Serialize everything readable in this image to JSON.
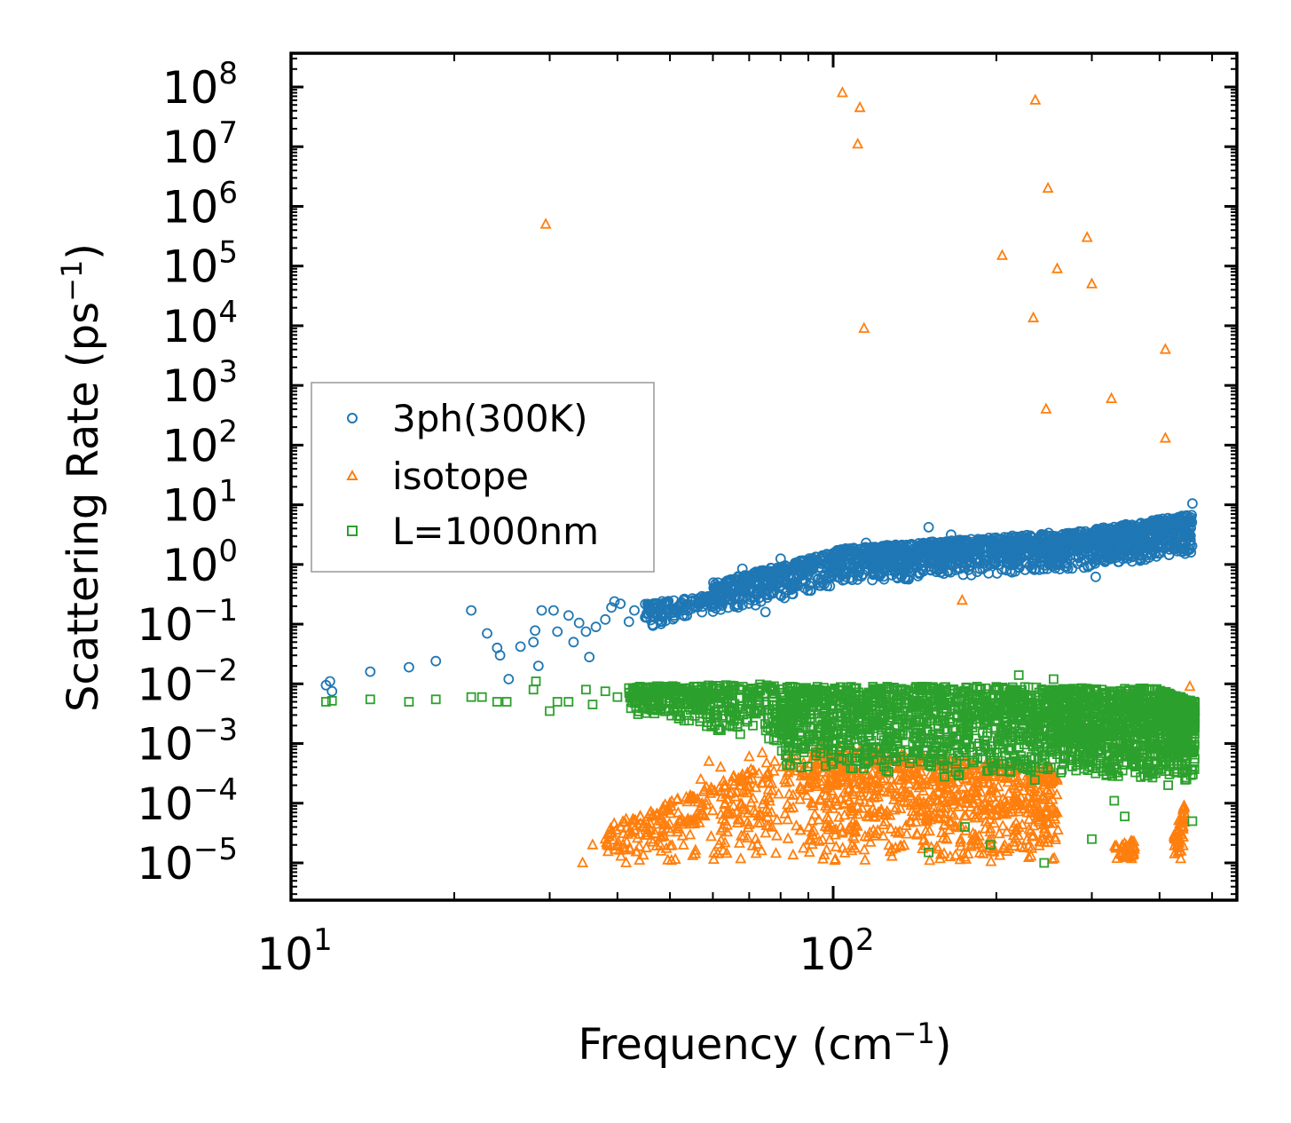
{
  "chart_data": {
    "type": "scatter",
    "xscale": "log",
    "yscale": "log",
    "xlim": [
      10,
      500
    ],
    "ylim": [
      2.5e-06,
      320000000.0
    ],
    "xlabel": "Frequency (cm",
    "xlabel_sup": "−1",
    "xlabel_tail": ")",
    "ylabel": "Scattering Rate (ps",
    "ylabel_sup": "−1",
    "ylabel_tail": ")",
    "x_ticks": [
      {
        "value": 10,
        "base": "10",
        "exp": "1"
      },
      {
        "value": 100,
        "base": "10",
        "exp": "2"
      }
    ],
    "y_ticks": [
      {
        "value": 1e-05,
        "base": "10",
        "exp": "−5"
      },
      {
        "value": 0.0001,
        "base": "10",
        "exp": "−4"
      },
      {
        "value": 0.001,
        "base": "10",
        "exp": "−3"
      },
      {
        "value": 0.01,
        "base": "10",
        "exp": "−2"
      },
      {
        "value": 0.1,
        "base": "10",
        "exp": "−1"
      },
      {
        "value": 1,
        "base": "10",
        "exp": "0"
      },
      {
        "value": 10,
        "base": "10",
        "exp": "1"
      },
      {
        "value": 100,
        "base": "10",
        "exp": "2"
      },
      {
        "value": 1000,
        "base": "10",
        "exp": "3"
      },
      {
        "value": 10000,
        "base": "10",
        "exp": "4"
      },
      {
        "value": 100000,
        "base": "10",
        "exp": "5"
      },
      {
        "value": 1000000,
        "base": "10",
        "exp": "6"
      },
      {
        "value": 10000000,
        "base": "10",
        "exp": "7"
      },
      {
        "value": 100000000,
        "base": "10",
        "exp": "8"
      }
    ],
    "legend_position": "center-left",
    "series": [
      {
        "name": "3ph(300K)",
        "marker": "circle",
        "color": "#1f77b4",
        "points": [
          [
            11.6,
            0.0095
          ],
          [
            11.8,
            0.011
          ],
          [
            11.9,
            0.0075
          ],
          [
            14,
            0.016
          ],
          [
            16.5,
            0.019
          ],
          [
            18.5,
            0.024
          ],
          [
            21.5,
            0.17
          ],
          [
            23,
            0.07
          ],
          [
            24,
            0.04
          ],
          [
            24.3,
            0.03
          ],
          [
            25.2,
            0.012
          ],
          [
            26.5,
            0.042
          ],
          [
            28,
            0.05
          ],
          [
            28.2,
            0.078
          ],
          [
            28.6,
            0.02
          ],
          [
            29,
            0.17
          ],
          [
            30.5,
            0.17
          ],
          [
            31,
            0.075
          ],
          [
            32.5,
            0.14
          ],
          [
            33.2,
            0.05
          ],
          [
            34,
            0.105
          ],
          [
            35,
            0.075
          ],
          [
            35.5,
            0.028
          ],
          [
            36.5,
            0.09
          ],
          [
            38,
            0.12
          ],
          [
            39,
            0.19
          ],
          [
            39.5,
            0.24
          ],
          [
            40.5,
            0.22
          ],
          [
            42,
            0.11
          ],
          [
            43,
            0.17
          ],
          [
            45,
            0.13
          ],
          [
            46,
            0.16
          ],
          [
            48,
            0.11
          ],
          [
            50,
            0.18
          ],
          [
            53,
            0.25
          ],
          [
            55,
            0.27
          ],
          [
            57,
            0.23
          ],
          [
            60,
            0.31
          ],
          [
            62,
            0.41
          ],
          [
            65,
            0.56
          ],
          [
            68,
            0.85
          ],
          [
            70,
            0.5
          ],
          [
            72,
            0.75
          ],
          [
            75,
            0.16
          ],
          [
            80,
            1.25
          ],
          [
            85,
            0.95
          ],
          [
            90,
            0.68
          ],
          [
            95,
            0.56
          ],
          [
            100,
            1.55
          ],
          [
            110,
            1.55
          ],
          [
            115,
            2.3
          ],
          [
            120,
            1.05
          ],
          [
            130,
            0.95
          ],
          [
            140,
            2.1
          ],
          [
            150,
            4.2
          ],
          [
            155,
            0.75
          ],
          [
            160,
            2.15
          ],
          [
            165,
            3.15
          ],
          [
            175,
            1.65
          ],
          [
            185,
            2.5
          ],
          [
            195,
            2.2
          ],
          [
            205,
            1.9
          ],
          [
            220,
            1.6
          ],
          [
            235,
            1.45
          ],
          [
            250,
            2.6
          ],
          [
            265,
            1.9
          ],
          [
            280,
            1.4
          ],
          [
            295,
            0.95
          ],
          [
            305,
            0.62
          ],
          [
            320,
            1.6
          ],
          [
            340,
            1.4
          ],
          [
            360,
            2.2
          ],
          [
            380,
            2.8
          ],
          [
            400,
            3.4
          ],
          [
            420,
            4.8
          ],
          [
            440,
            6.5
          ],
          [
            460,
            10.5
          ]
        ],
        "bands": [
          {
            "x": [
              45,
              60
            ],
            "lo": [
              0.08,
              0.18
            ],
            "hi": [
              0.22,
              0.32
            ],
            "count": 110
          },
          {
            "x": [
              60,
              100
            ],
            "lo": [
              0.14,
              0.4
            ],
            "hi": [
              0.5,
              1.6
            ],
            "count": 360
          },
          {
            "x": [
              100,
              250
            ],
            "lo": [
              0.45,
              0.8
            ],
            "hi": [
              1.8,
              3.4
            ],
            "count": 900
          },
          {
            "x": [
              250,
              460
            ],
            "lo": [
              0.75,
              1.3
            ],
            "hi": [
              3.0,
              7.0
            ],
            "count": 700
          }
        ]
      },
      {
        "name": "isotope",
        "marker": "triangle",
        "color": "#ff7f0e",
        "points": [
          [
            29.5,
            500000
          ],
          [
            104,
            80000000
          ],
          [
            112,
            45000000
          ],
          [
            111,
            11000000
          ],
          [
            114,
            9000
          ],
          [
            236,
            60000000
          ],
          [
            249,
            2000000
          ],
          [
            205,
            150000
          ],
          [
            259,
            90000
          ],
          [
            294,
            300000
          ],
          [
            300,
            50000
          ],
          [
            234,
            13500
          ],
          [
            247,
            400
          ],
          [
            326,
            600
          ],
          [
            410,
            4000
          ],
          [
            410,
            130
          ],
          [
            173,
            0.25
          ],
          [
            455,
            0.009
          ],
          [
            34.5,
            1e-05
          ],
          [
            36,
            2e-05
          ],
          [
            38,
            2.5e-05
          ],
          [
            40,
            2e-05
          ],
          [
            41.5,
            1e-05
          ],
          [
            44,
            3e-05
          ],
          [
            46,
            4.5e-05
          ],
          [
            48,
            6e-05
          ],
          [
            50,
            0.0001
          ],
          [
            52,
            5e-05
          ],
          [
            55,
            0.00012
          ],
          [
            57,
            0.00025
          ],
          [
            59,
            0.0005
          ],
          [
            62,
            0.0004
          ],
          [
            65,
            0.00015
          ],
          [
            68,
            0.0003
          ],
          [
            70,
            0.0006
          ],
          [
            74,
            0.0007
          ],
          [
            78,
            0.0005
          ]
        ],
        "bands": [
          {
            "x": [
              38,
              90
            ],
            "lo": [
              1e-05,
              1e-05
            ],
            "hi": [
              4e-05,
              0.0009
            ],
            "count": 320
          },
          {
            "x": [
              90,
              260
            ],
            "lo": [
              1e-05,
              1e-05
            ],
            "hi": [
              0.001,
              0.0004
            ],
            "count": 900
          },
          {
            "x": [
              330,
              360
            ],
            "lo": [
              1e-05,
              1e-05
            ],
            "hi": [
              2e-05,
              2.5e-05
            ],
            "count": 40
          },
          {
            "x": [
              425,
              445
            ],
            "lo": [
              1e-05,
              1e-05
            ],
            "hi": [
              3e-05,
              0.0001
            ],
            "count": 50
          }
        ]
      },
      {
        "name": "L=1000nm",
        "marker": "square",
        "color": "#2ca02c",
        "points": [
          [
            11.6,
            0.005
          ],
          [
            11.9,
            0.0052
          ],
          [
            14,
            0.0055
          ],
          [
            16.5,
            0.005
          ],
          [
            18.5,
            0.0055
          ],
          [
            21.5,
            0.006
          ],
          [
            22.5,
            0.006
          ],
          [
            24,
            0.005
          ],
          [
            25,
            0.005
          ],
          [
            28,
            0.008
          ],
          [
            28.3,
            0.011
          ],
          [
            30,
            0.0035
          ],
          [
            31,
            0.005
          ],
          [
            32.5,
            0.005
          ],
          [
            35,
            0.008
          ],
          [
            36,
            0.0045
          ],
          [
            38,
            0.0075
          ],
          [
            40,
            0.006
          ],
          [
            42,
            0.0085
          ],
          [
            44,
            0.009
          ],
          [
            220,
            0.014
          ],
          [
            255,
            0.012
          ],
          [
            330,
            0.00011
          ],
          [
            345,
            6e-05
          ],
          [
            380,
            0.0004
          ],
          [
            415,
            0.0002
          ],
          [
            460,
            5e-05
          ],
          [
            195,
            2e-05
          ],
          [
            245,
            1e-05
          ],
          [
            175,
            4e-05
          ],
          [
            150,
            1.5e-05
          ],
          [
            300,
            2.5e-05
          ]
        ],
        "bands": [
          {
            "x": [
              42,
              80
            ],
            "lo": [
              0.003,
              0.001
            ],
            "hi": [
              0.009,
              0.01
            ],
            "count": 380
          },
          {
            "x": [
              80,
              250
            ],
            "lo": [
              0.0004,
              0.0002
            ],
            "hi": [
              0.009,
              0.009
            ],
            "count": 1200
          },
          {
            "x": [
              250,
              400
            ],
            "lo": [
              0.0003,
              0.0002
            ],
            "hi": [
              0.0085,
              0.0085
            ],
            "count": 800
          },
          {
            "x": [
              400,
              465
            ],
            "lo": [
              0.0003,
              0.0002
            ],
            "hi": [
              0.008,
              0.005
            ],
            "count": 450
          }
        ]
      }
    ]
  }
}
